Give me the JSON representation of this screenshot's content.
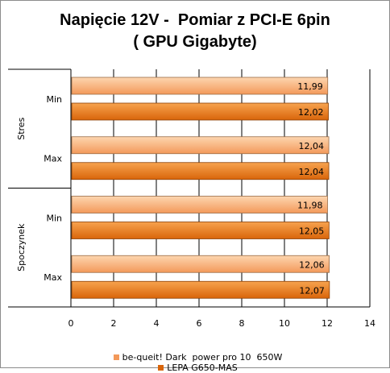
{
  "title_line1": "Napięcie 12V -  Pomiar z PCI-E 6pin",
  "title_line2": "( GPU Gigabyte)",
  "colors": {
    "series1_light": "#fdd6b0",
    "series1_dark": "#f3995a",
    "series2_light": "#f7a34f",
    "series2_dark": "#d9650a",
    "grid": "#000000"
  },
  "chart_data": {
    "type": "bar",
    "orientation": "horizontal",
    "title": "Napięcie 12V -  Pomiar z PCI-E 6pin ( GPU Gigabyte)",
    "xlim": [
      0,
      14
    ],
    "xticks": [
      0,
      2,
      4,
      6,
      8,
      10,
      12,
      14
    ],
    "groups": [
      {
        "label": "Stres",
        "categories": [
          {
            "label": "Min",
            "values": [
              "11,99",
              "12,02"
            ],
            "numeric": [
              11.99,
              12.02
            ]
          },
          {
            "label": "Max",
            "values": [
              "12,04",
              "12,04"
            ],
            "numeric": [
              12.04,
              12.04
            ]
          }
        ]
      },
      {
        "label": "Spoczynek",
        "categories": [
          {
            "label": "Min",
            "values": [
              "11,98",
              "12,05"
            ],
            "numeric": [
              11.98,
              12.05
            ]
          },
          {
            "label": "Max",
            "values": [
              "12,06",
              "12,07"
            ],
            "numeric": [
              12.06,
              12.07
            ]
          }
        ]
      }
    ],
    "series": [
      {
        "name": "be-queit! Dark  power pro 10  650W"
      },
      {
        "name": "LEPA G650-MAS"
      }
    ],
    "grid": true,
    "legend": "bottom"
  }
}
